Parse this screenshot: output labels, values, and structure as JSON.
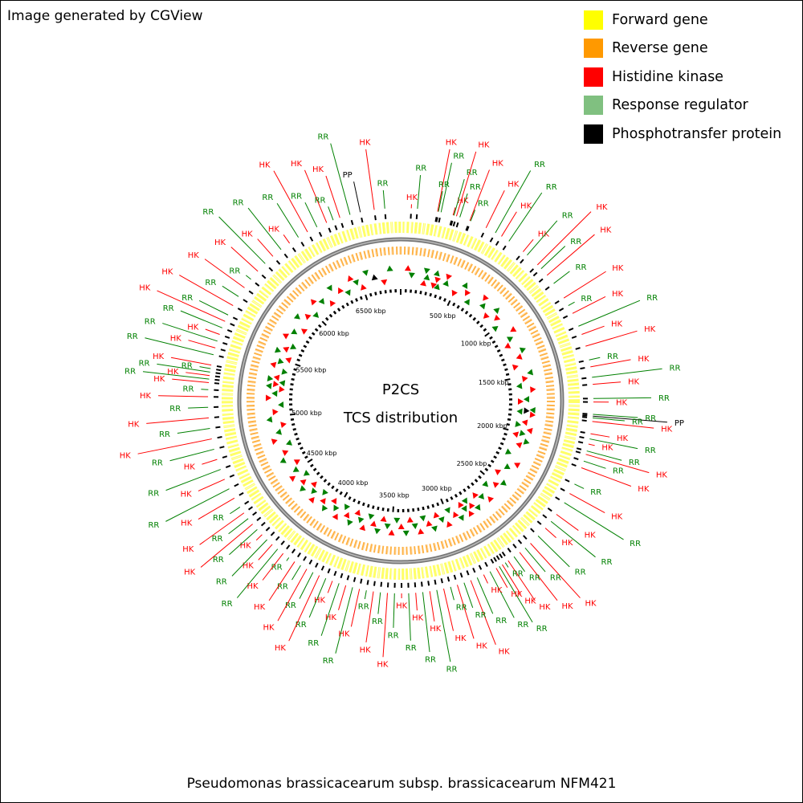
{
  "header": {
    "credit": "Image generated by CGView"
  },
  "legend": [
    {
      "label": "Forward gene",
      "color": "#ffff00"
    },
    {
      "label": "Reverse gene",
      "color": "#ff9900"
    },
    {
      "label": "Histidine kinase",
      "color": "#ff0000"
    },
    {
      "label": "Response regulator",
      "color": "#80c080"
    },
    {
      "label": "Phosphotransfer protein",
      "color": "#000000"
    }
  ],
  "center": {
    "line1": "P2CS",
    "line2": "TCS distribution"
  },
  "footer": {
    "organism": "Pseudomonas brassicacearum subsp. brassicacearum NFM421"
  },
  "map": {
    "genome_length_kbp": 6850,
    "tick_labels": [
      "500 kbp",
      "1000 kbp",
      "1500 kbp",
      "2000 kbp",
      "2500 kbp",
      "3000 kbp",
      "3500 kbp",
      "4000 kbp",
      "4500 kbp",
      "5000 kbp",
      "5500 kbp",
      "6000 kbp",
      "6500 kbp"
    ],
    "tick_values_kbp": [
      500,
      1000,
      1500,
      2000,
      2500,
      3000,
      3500,
      4000,
      4500,
      5000,
      5500,
      6000,
      6500
    ],
    "feature_colors": {
      "HK": "#ff0000",
      "RR": "#008000",
      "PP": "#000000"
    },
    "feature_line_colors": {
      "HK": "#ff0000",
      "RR": "#008000",
      "PP": "#000000"
    },
    "features": [
      {
        "type": "HK",
        "pos_kbp": 60
      },
      {
        "type": "RR",
        "pos_kbp": 95
      },
      {
        "type": "HK",
        "pos_kbp": 210
      },
      {
        "type": "RR",
        "pos_kbp": 215
      },
      {
        "type": "RR",
        "pos_kbp": 230
      },
      {
        "type": "HK",
        "pos_kbp": 300
      },
      {
        "type": "RR",
        "pos_kbp": 305
      },
      {
        "type": "HK",
        "pos_kbp": 320
      },
      {
        "type": "RR",
        "pos_kbp": 340
      },
      {
        "type": "HK",
        "pos_kbp": 400
      },
      {
        "type": "RR",
        "pos_kbp": 405
      },
      {
        "type": "HK",
        "pos_kbp": 500
      },
      {
        "type": "RR",
        "pos_kbp": 560
      },
      {
        "type": "HK",
        "pos_kbp": 600
      },
      {
        "type": "RR",
        "pos_kbp": 650
      },
      {
        "type": "HK",
        "pos_kbp": 750
      },
      {
        "type": "RR",
        "pos_kbp": 780
      },
      {
        "type": "HK",
        "pos_kbp": 860
      },
      {
        "type": "RR",
        "pos_kbp": 890
      },
      {
        "type": "HK",
        "pos_kbp": 940
      },
      {
        "type": "RR",
        "pos_kbp": 1000
      },
      {
        "type": "HK",
        "pos_kbp": 1100
      },
      {
        "type": "RR",
        "pos_kbp": 1150
      },
      {
        "type": "HK",
        "pos_kbp": 1200
      },
      {
        "type": "RR",
        "pos_kbp": 1280
      },
      {
        "type": "HK",
        "pos_kbp": 1330
      },
      {
        "type": "HK",
        "pos_kbp": 1400
      },
      {
        "type": "RR",
        "pos_kbp": 1480
      },
      {
        "type": "HK",
        "pos_kbp": 1520
      },
      {
        "type": "RR",
        "pos_kbp": 1580
      },
      {
        "type": "HK",
        "pos_kbp": 1620
      },
      {
        "type": "RR",
        "pos_kbp": 1700
      },
      {
        "type": "HK",
        "pos_kbp": 1720
      },
      {
        "type": "RR",
        "pos_kbp": 1790
      },
      {
        "type": "PP",
        "pos_kbp": 1800
      },
      {
        "type": "RR",
        "pos_kbp": 1810
      },
      {
        "type": "HK",
        "pos_kbp": 1830
      },
      {
        "type": "HK",
        "pos_kbp": 1900
      },
      {
        "type": "RR",
        "pos_kbp": 1930
      },
      {
        "type": "HK",
        "pos_kbp": 1960
      },
      {
        "type": "RR",
        "pos_kbp": 2000
      },
      {
        "type": "HK",
        "pos_kbp": 2020
      },
      {
        "type": "RR",
        "pos_kbp": 2060
      },
      {
        "type": "HK",
        "pos_kbp": 2100
      },
      {
        "type": "RR",
        "pos_kbp": 2200
      },
      {
        "type": "HK",
        "pos_kbp": 2260
      },
      {
        "type": "RR",
        "pos_kbp": 2320
      },
      {
        "type": "HK",
        "pos_kbp": 2400
      },
      {
        "type": "RR",
        "pos_kbp": 2450
      },
      {
        "type": "HK",
        "pos_kbp": 2500
      },
      {
        "type": "RR",
        "pos_kbp": 2560
      },
      {
        "type": "HK",
        "pos_kbp": 2620
      },
      {
        "type": "RR",
        "pos_kbp": 2660
      },
      {
        "type": "HK",
        "pos_kbp": 2700
      },
      {
        "type": "RR",
        "pos_kbp": 2740
      },
      {
        "type": "HK",
        "pos_kbp": 2780
      },
      {
        "type": "RR",
        "pos_kbp": 2800
      },
      {
        "type": "HK",
        "pos_kbp": 2820
      },
      {
        "type": "RR",
        "pos_kbp": 2840
      },
      {
        "type": "HK",
        "pos_kbp": 2860
      },
      {
        "type": "RR",
        "pos_kbp": 2900
      },
      {
        "type": "HK",
        "pos_kbp": 2940
      },
      {
        "type": "RR",
        "pos_kbp": 2980
      },
      {
        "type": "HK",
        "pos_kbp": 3020
      },
      {
        "type": "RR",
        "pos_kbp": 3060
      },
      {
        "type": "HK",
        "pos_kbp": 3100
      },
      {
        "type": "RR",
        "pos_kbp": 3140
      },
      {
        "type": "HK",
        "pos_kbp": 3180
      },
      {
        "type": "RR",
        "pos_kbp": 3220
      },
      {
        "type": "HK",
        "pos_kbp": 3260
      },
      {
        "type": "RR",
        "pos_kbp": 3300
      },
      {
        "type": "HK",
        "pos_kbp": 3340
      },
      {
        "type": "RR",
        "pos_kbp": 3380
      },
      {
        "type": "HK",
        "pos_kbp": 3420
      },
      {
        "type": "RR",
        "pos_kbp": 3460
      },
      {
        "type": "HK",
        "pos_kbp": 3500
      },
      {
        "type": "RR",
        "pos_kbp": 3540
      },
      {
        "type": "HK",
        "pos_kbp": 3580
      },
      {
        "type": "RR",
        "pos_kbp": 3620
      },
      {
        "type": "HK",
        "pos_kbp": 3660
      },
      {
        "type": "RR",
        "pos_kbp": 3700
      },
      {
        "type": "HK",
        "pos_kbp": 3740
      },
      {
        "type": "RR",
        "pos_kbp": 3780
      },
      {
        "type": "HK",
        "pos_kbp": 3820
      },
      {
        "type": "RR",
        "pos_kbp": 3860
      },
      {
        "type": "HK",
        "pos_kbp": 3900
      },
      {
        "type": "RR",
        "pos_kbp": 3940
      },
      {
        "type": "HK",
        "pos_kbp": 3980
      },
      {
        "type": "RR",
        "pos_kbp": 4020
      },
      {
        "type": "HK",
        "pos_kbp": 4060
      },
      {
        "type": "RR",
        "pos_kbp": 4100
      },
      {
        "type": "HK",
        "pos_kbp": 4140
      },
      {
        "type": "RR",
        "pos_kbp": 4180
      },
      {
        "type": "HK",
        "pos_kbp": 4220
      },
      {
        "type": "RR",
        "pos_kbp": 4260
      },
      {
        "type": "HK",
        "pos_kbp": 4300
      },
      {
        "type": "RR",
        "pos_kbp": 4340
      },
      {
        "type": "HK",
        "pos_kbp": 4380
      },
      {
        "type": "RR",
        "pos_kbp": 4420
      },
      {
        "type": "HK",
        "pos_kbp": 4460
      },
      {
        "type": "RR",
        "pos_kbp": 4500
      },
      {
        "type": "HK",
        "pos_kbp": 4560
      },
      {
        "type": "RR",
        "pos_kbp": 4620
      },
      {
        "type": "HK",
        "pos_kbp": 4680
      },
      {
        "type": "RR",
        "pos_kbp": 4740
      },
      {
        "type": "HK",
        "pos_kbp": 4800
      },
      {
        "type": "RR",
        "pos_kbp": 4860
      },
      {
        "type": "HK",
        "pos_kbp": 4920
      },
      {
        "type": "RR",
        "pos_kbp": 4980
      },
      {
        "type": "HK",
        "pos_kbp": 5040
      },
      {
        "type": "RR",
        "pos_kbp": 5100
      },
      {
        "type": "HK",
        "pos_kbp": 5160
      },
      {
        "type": "RR",
        "pos_kbp": 5200
      },
      {
        "type": "HK",
        "pos_kbp": 5240
      },
      {
        "type": "RR",
        "pos_kbp": 5260
      },
      {
        "type": "HK",
        "pos_kbp": 5280
      },
      {
        "type": "RR",
        "pos_kbp": 5300
      },
      {
        "type": "RR",
        "pos_kbp": 5320
      },
      {
        "type": "HK",
        "pos_kbp": 5340
      },
      {
        "type": "RR",
        "pos_kbp": 5400
      },
      {
        "type": "HK",
        "pos_kbp": 5440
      },
      {
        "type": "RR",
        "pos_kbp": 5480
      },
      {
        "type": "HK",
        "pos_kbp": 5520
      },
      {
        "type": "RR",
        "pos_kbp": 5560
      },
      {
        "type": "HK",
        "pos_kbp": 5600
      },
      {
        "type": "RR",
        "pos_kbp": 5640
      },
      {
        "type": "HK",
        "pos_kbp": 5700
      },
      {
        "type": "RR",
        "pos_kbp": 5760
      },
      {
        "type": "HK",
        "pos_kbp": 5820
      },
      {
        "type": "RR",
        "pos_kbp": 5880
      },
      {
        "type": "HK",
        "pos_kbp": 5940
      },
      {
        "type": "RR",
        "pos_kbp": 6000
      },
      {
        "type": "HK",
        "pos_kbp": 6060
      },
      {
        "type": "RR",
        "pos_kbp": 6120
      },
      {
        "type": "HK",
        "pos_kbp": 6180
      },
      {
        "type": "RR",
        "pos_kbp": 6240
      },
      {
        "type": "HK",
        "pos_kbp": 6300
      },
      {
        "type": "RR",
        "pos_kbp": 6360
      },
      {
        "type": "HK",
        "pos_kbp": 6420
      },
      {
        "type": "RR",
        "pos_kbp": 6460
      },
      {
        "type": "HK",
        "pos_kbp": 6500
      },
      {
        "type": "RR",
        "pos_kbp": 6560
      },
      {
        "type": "PP",
        "pos_kbp": 6620
      },
      {
        "type": "HK",
        "pos_kbp": 6700
      },
      {
        "type": "RR",
        "pos_kbp": 6760
      }
    ]
  }
}
